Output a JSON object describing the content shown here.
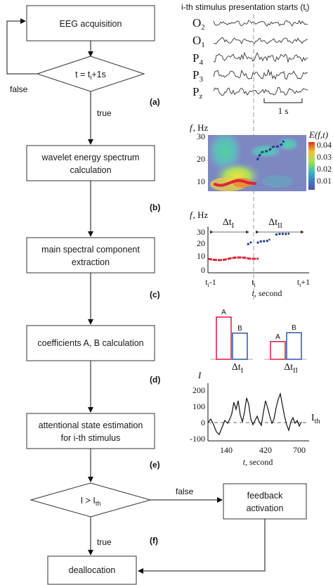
{
  "flowchart": {
    "start_box": "EEG acquisition",
    "condition_1": {
      "base": "t = t",
      "sub": "i",
      "suffix": "+1s"
    },
    "false_label_1": "false",
    "true_label_1": "true",
    "box_b": [
      "wavelet energy spectrum",
      "calculation"
    ],
    "box_c": [
      "main spectral component",
      "extraction"
    ],
    "box_d": "coefficients A, B calculation",
    "box_e": [
      "attentional state estimation",
      "for i-th stimulus"
    ],
    "condition_2": {
      "base": "I > I",
      "sub": "th"
    },
    "false_label_2": "false",
    "true_label_2": "true",
    "feedback_box": [
      "feedback",
      "activation"
    ],
    "end_box": "deallocation"
  },
  "panel_labels": [
    "(a)",
    "(b)",
    "(c)",
    "(d)",
    "(e)",
    "(f)"
  ],
  "panel_a": {
    "title": "i-th stimulus presentation starts (t",
    "title_sub": "i",
    "title_end": ")",
    "channels": [
      {
        "base": "O",
        "sub": "2"
      },
      {
        "base": "O",
        "sub": "1"
      },
      {
        "base": "P",
        "sub": "4"
      },
      {
        "base": "P",
        "sub": "3"
      },
      {
        "base": "P",
        "sub": "z"
      }
    ],
    "scale_label": "1 s"
  },
  "panel_b": {
    "ylabel": "f, Hz",
    "y_ticks": [
      "30",
      "20",
      "10"
    ],
    "colorbar_title": "E(f,t)",
    "colorbar_ticks": [
      "0.04",
      "0.03",
      "0.02",
      "0.01"
    ]
  },
  "panel_c": {
    "ylabel": "f, Hz",
    "y_ticks": [
      "30",
      "20",
      "10",
      "0"
    ],
    "interval_1": {
      "base": "Δt",
      "sub": "I"
    },
    "interval_2": {
      "base": "Δt",
      "sub": "II"
    },
    "x_ticks": [
      {
        "base": "t",
        "sub": "i",
        "suffix": "-1"
      },
      {
        "base": "t",
        "sub": "i",
        "suffix": ""
      },
      {
        "base": "t",
        "sub": "i",
        "suffix": "+1"
      }
    ],
    "xlabel": "t, second"
  },
  "panel_d": {
    "bar_labels": [
      "A",
      "B",
      "A",
      "B"
    ],
    "values": [
      1.0,
      0.62,
      0.42,
      0.63
    ],
    "group_1": {
      "base": "Δt",
      "sub": "I"
    },
    "group_2": {
      "base": "Δt",
      "sub": "II"
    },
    "colors": {
      "A": "#e0284a",
      "B": "#3a5fb0"
    }
  },
  "panel_e": {
    "ylabel": "I",
    "y_ticks": [
      "200",
      "100",
      "0",
      "-100"
    ],
    "x_ticks": [
      "140",
      "420",
      "700"
    ],
    "xlabel": "t, second",
    "threshold": {
      "base": "I",
      "sub": "th"
    }
  }
}
